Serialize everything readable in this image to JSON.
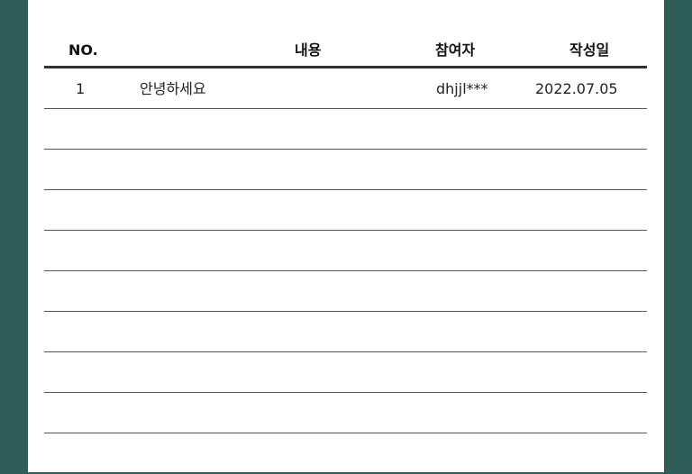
{
  "table": {
    "headers": {
      "no": "NO.",
      "content": "내용",
      "author": "참여자",
      "date": "작성일"
    },
    "rows": [
      {
        "no": "1",
        "content": "안녕하세요",
        "author": "dhjjl***",
        "date": "2022.07.05"
      },
      {
        "no": "",
        "content": "",
        "author": "",
        "date": ""
      },
      {
        "no": "",
        "content": "",
        "author": "",
        "date": ""
      },
      {
        "no": "",
        "content": "",
        "author": "",
        "date": ""
      },
      {
        "no": "",
        "content": "",
        "author": "",
        "date": ""
      },
      {
        "no": "",
        "content": "",
        "author": "",
        "date": ""
      },
      {
        "no": "",
        "content": "",
        "author": "",
        "date": ""
      },
      {
        "no": "",
        "content": "",
        "author": "",
        "date": ""
      },
      {
        "no": "",
        "content": "",
        "author": "",
        "date": ""
      }
    ]
  },
  "colors": {
    "background": "#2e5c59",
    "panel": "#ffffff",
    "header_rule": "#333333"
  }
}
